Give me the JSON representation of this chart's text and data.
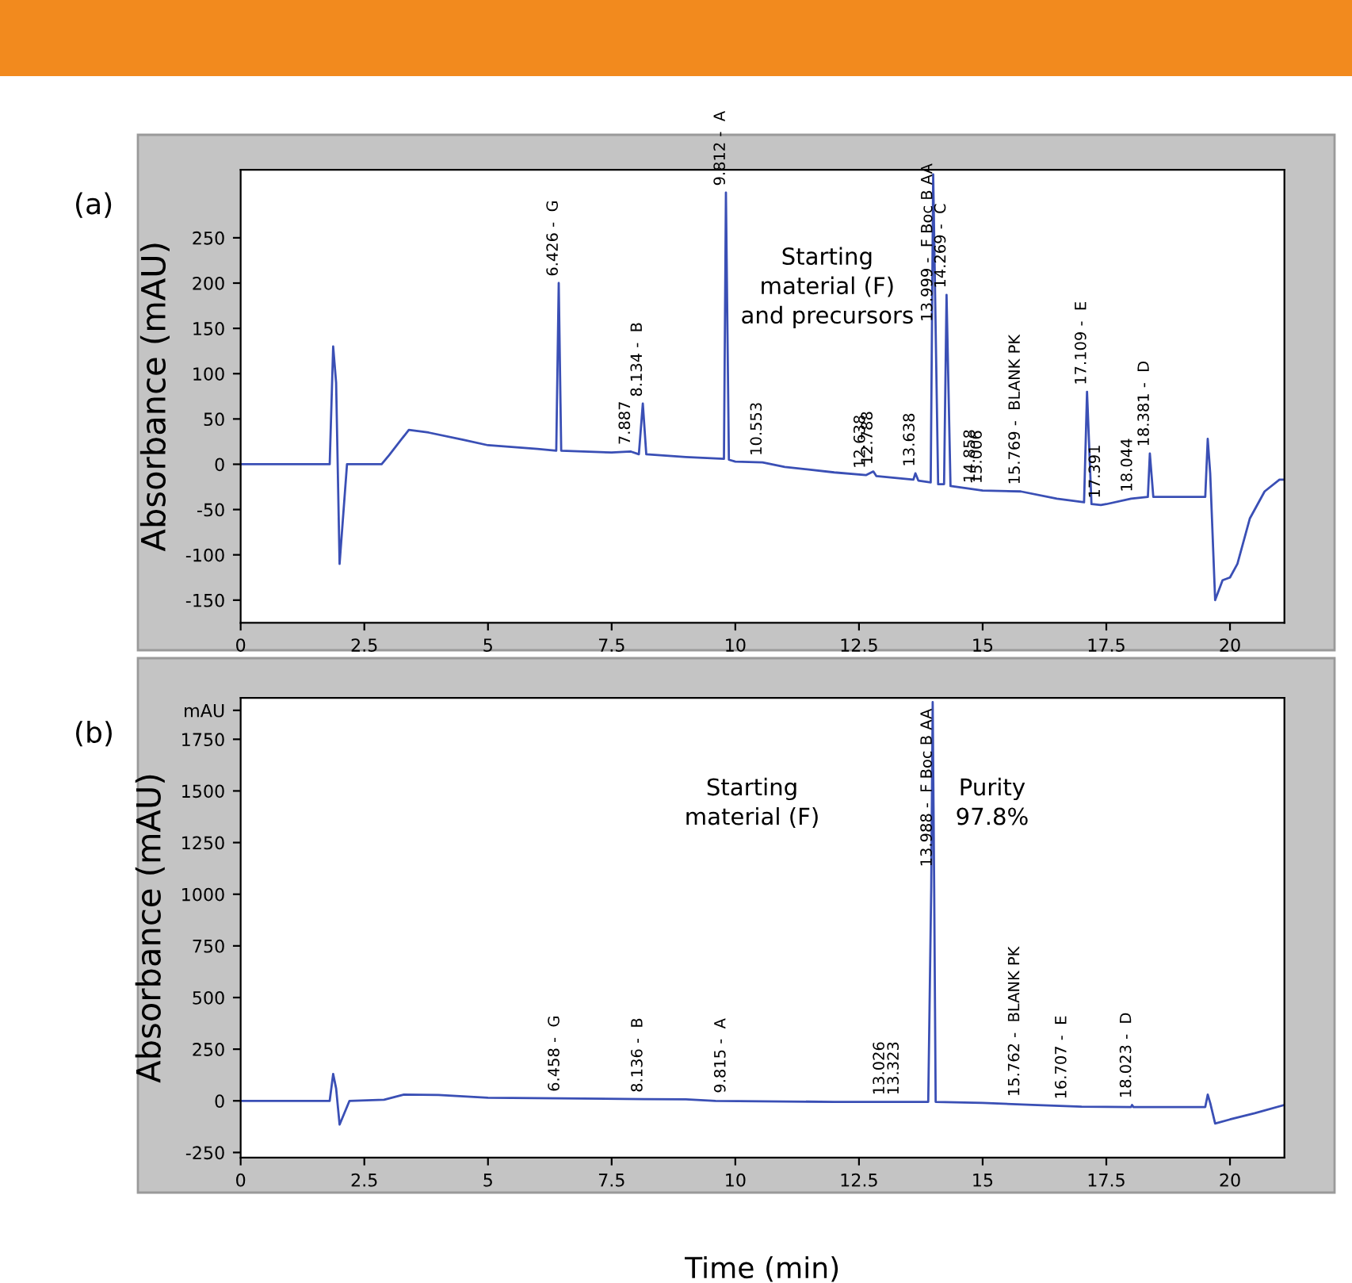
{
  "chart_data": [
    {
      "type": "line",
      "title": "(a)",
      "ylabel": "Absorbance (mAU)",
      "xlim": [
        0,
        21.1
      ],
      "xticks": [
        0,
        2.5,
        5,
        7.5,
        10,
        12.5,
        15,
        17.5,
        20
      ],
      "ylim": [
        -175,
        325
      ],
      "yticks": [
        -150,
        -100,
        -50,
        0,
        50,
        100,
        150,
        200,
        250
      ],
      "grid": false,
      "legend": false,
      "series": [
        {
          "color": "#3a4fb5",
          "x": [
            0,
            1.8,
            1.87,
            1.93,
            2.0,
            2.15,
            2.85,
            3.0,
            3.4,
            3.8,
            4.5,
            5,
            6,
            6.38,
            6.43,
            6.48,
            7.5,
            7.89,
            8.05,
            8.13,
            8.2,
            9.0,
            9.77,
            9.81,
            9.87,
            10.0,
            10.55,
            11,
            12,
            12.64,
            12.79,
            12.85,
            13.6,
            13.64,
            13.7,
            13.95,
            14.0,
            14.1,
            14.22,
            14.27,
            14.35,
            14.86,
            15.0,
            15.77,
            16.5,
            17.05,
            17.11,
            17.2,
            17.39,
            17.5,
            18.0,
            18.34,
            18.38,
            18.45,
            19.5,
            19.55,
            19.6,
            19.7,
            19.85,
            20.0,
            20.15,
            20.4,
            20.7,
            21.0,
            21.1
          ],
          "values": [
            0,
            0,
            130,
            90,
            -110,
            0,
            0,
            10,
            38,
            35,
            27,
            21,
            17,
            15,
            200,
            15,
            13,
            14,
            11,
            67,
            11,
            8,
            6,
            300,
            5,
            3,
            2,
            -3,
            -9,
            -12,
            -8,
            -13,
            -17,
            -10,
            -18,
            -20,
            320,
            -22,
            -22,
            187,
            -24,
            -28,
            -29,
            -30,
            -38,
            -42,
            80,
            -44,
            -45,
            -44,
            -38,
            -36,
            12,
            -36,
            -36,
            28,
            -10,
            -150,
            -128,
            -125,
            -110,
            -60,
            -30,
            -17,
            -17
          ]
        }
      ],
      "annotations": [
        {
          "text": "6.426 -  G",
          "x": 6.43,
          "y": 200
        },
        {
          "text": "7.887",
          "x": 7.89,
          "y": 14
        },
        {
          "text": "8.134 -  B",
          "x": 8.13,
          "y": 67
        },
        {
          "text": "9.812 -  A",
          "x": 9.81,
          "y": 300
        },
        {
          "text": "10.553",
          "x": 10.55,
          "y": 2
        },
        {
          "text": "12.638",
          "x": 12.64,
          "y": -12
        },
        {
          "text": "12.788",
          "x": 12.79,
          "y": -8
        },
        {
          "text": "13.638",
          "x": 13.64,
          "y": -10
        },
        {
          "text": "13.999 -  F Boc B AA",
          "x": 14.0,
          "y": 150
        },
        {
          "text": "14.269 -  C",
          "x": 14.27,
          "y": 187
        },
        {
          "text": "14.858",
          "x": 14.86,
          "y": -28
        },
        {
          "text": "15.006",
          "x": 15.0,
          "y": -29
        },
        {
          "text": "15.769 -  BLANK PK",
          "x": 15.77,
          "y": -30
        },
        {
          "text": "17.109 -  E",
          "x": 17.11,
          "y": 80
        },
        {
          "text": "17.391",
          "x": 17.39,
          "y": -45
        },
        {
          "text": "18.044",
          "x": 18.04,
          "y": -38
        },
        {
          "text": "18.381 -  D",
          "x": 18.38,
          "y": 12
        },
        "Starting\nmaterial (F)\nand precursors"
      ]
    },
    {
      "type": "line",
      "title": "(b)",
      "ylabel": "Absorbance (mAU)",
      "xlabel": "Time (min)",
      "xlim": [
        0,
        21.1
      ],
      "xticks": [
        0,
        2.5,
        5,
        7.5,
        10,
        12.5,
        15,
        17.5,
        20
      ],
      "ylim": [
        -275,
        1950
      ],
      "yticks": [
        -250,
        0,
        250,
        500,
        750,
        1000,
        1250,
        1500,
        1750,
        {
          "value": 1890,
          "label": "mAU"
        }
      ],
      "grid": false,
      "legend": false,
      "series": [
        {
          "color": "#3a4fb5",
          "x": [
            0,
            1.8,
            1.87,
            1.93,
            2.0,
            2.2,
            2.9,
            3.3,
            4.0,
            5,
            6.46,
            8.14,
            9.0,
            9.6,
            12,
            13.9,
            13.96,
            13.99,
            14.02,
            14.05,
            15,
            16,
            17,
            18,
            18.02,
            18.05,
            19.5,
            19.55,
            19.6,
            19.7,
            20.0,
            20.5,
            21.1
          ],
          "values": [
            0,
            0,
            130,
            60,
            -115,
            0,
            5,
            30,
            28,
            15,
            12,
            8,
            7,
            0,
            -5,
            -5,
            1030,
            1930,
            1030,
            -5,
            -10,
            -20,
            -28,
            -30,
            -20,
            -30,
            -30,
            30,
            -10,
            -110,
            -90,
            -60,
            -20
          ]
        }
      ],
      "annotations": [
        {
          "text": "6.458 -  G",
          "x": 6.46,
          "y": 12
        },
        {
          "text": "8.136 -  B",
          "x": 8.14,
          "y": 8
        },
        {
          "text": "9.815 -  A",
          "x": 9.82,
          "y": 5
        },
        {
          "text": "13.026",
          "x": 13.03,
          "y": -5
        },
        {
          "text": "13.323",
          "x": 13.32,
          "y": -5
        },
        {
          "text": "13.988 -  F Boc B AA",
          "x": 13.99,
          "y": 1100
        },
        {
          "text": "15.762 -  BLANK PK",
          "x": 15.76,
          "y": -12
        },
        {
          "text": "16.707 -  E",
          "x": 16.71,
          "y": -25
        },
        {
          "text": "18.023 -  D",
          "x": 18.02,
          "y": -20
        },
        "Starting\nmaterial (F)",
        "Purity\n97.8%"
      ]
    }
  ]
}
